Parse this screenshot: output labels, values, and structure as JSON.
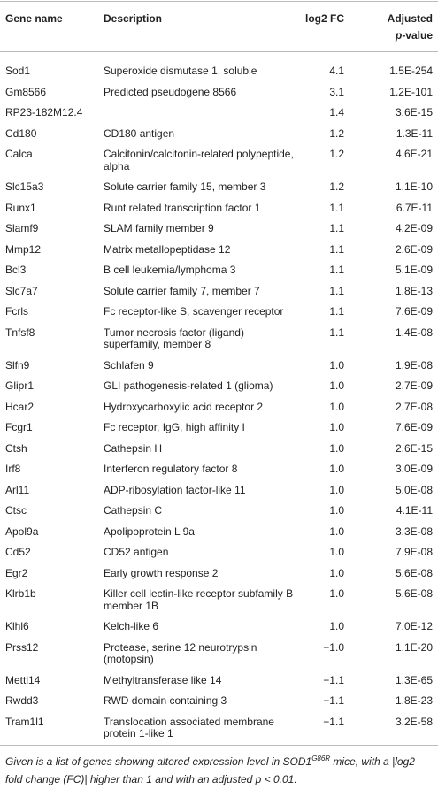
{
  "table": {
    "columns": [
      "Gene name",
      "Description",
      "log2 FC",
      [
        "Adjusted",
        "p",
        "-value"
      ]
    ],
    "rows": [
      [
        "Sod1",
        "Superoxide dismutase 1, soluble",
        "4.1",
        "1.5E-254"
      ],
      [
        "Gm8566",
        "Predicted pseudogene 8566",
        "3.1",
        "1.2E-101"
      ],
      [
        "RP23-182M12.4",
        null,
        "1.4",
        "3.6E-15"
      ],
      [
        "Cd180",
        "CD180 antigen",
        "1.2",
        "1.3E-11"
      ],
      [
        "Calca",
        "Calcitonin/calcitonin-related polypeptide, alpha",
        "1.2",
        "4.6E-21"
      ],
      [
        "Slc15a3",
        "Solute carrier family 15, member 3",
        "1.2",
        "1.1E-10"
      ],
      [
        "Runx1",
        "Runt related transcription factor 1",
        "1.1",
        "6.7E-11"
      ],
      [
        "Slamf9",
        "SLAM family member 9",
        "1.1",
        "4.2E-09"
      ],
      [
        "Mmp12",
        "Matrix metallopeptidase 12",
        "1.1",
        "2.6E-09"
      ],
      [
        "Bcl3",
        "B cell leukemia/lymphoma 3",
        "1.1",
        "5.1E-09"
      ],
      [
        "Slc7a7",
        "Solute carrier family 7, member 7",
        "1.1",
        "1.8E-13"
      ],
      [
        "Fcrls",
        "Fc receptor-like S, scavenger receptor",
        "1.1",
        "7.6E-09"
      ],
      [
        "Tnfsf8",
        "Tumor necrosis factor (ligand) superfamily, member 8",
        "1.1",
        "1.4E-08"
      ],
      [
        "Slfn9",
        "Schlafen 9",
        "1.0",
        "1.9E-08"
      ],
      [
        "Glipr1",
        "GLI pathogenesis-related 1 (glioma)",
        "1.0",
        "2.7E-09"
      ],
      [
        "Hcar2",
        "Hydroxycarboxylic acid receptor 2",
        "1.0",
        "2.7E-08"
      ],
      [
        "Fcgr1",
        "Fc receptor, IgG, high affinity I",
        "1.0",
        "7.6E-09"
      ],
      [
        "Ctsh",
        "Cathepsin H",
        "1.0",
        "2.6E-15"
      ],
      [
        "Irf8",
        "Interferon regulatory factor 8",
        "1.0",
        "3.0E-09"
      ],
      [
        "Arl11",
        "ADP-ribosylation factor-like 11",
        "1.0",
        "5.0E-08"
      ],
      [
        "Ctsc",
        "Cathepsin C",
        "1.0",
        "4.1E-11"
      ],
      [
        "Apol9a",
        "Apolipoprotein L 9a",
        "1.0",
        "3.3E-08"
      ],
      [
        "Cd52",
        "CD52 antigen",
        "1.0",
        "7.9E-08"
      ],
      [
        "Egr2",
        "Early growth response 2",
        "1.0",
        "5.6E-08"
      ],
      [
        "Klrb1b",
        "Killer cell lectin-like receptor subfamily B member 1B",
        "1.0",
        "5.6E-08"
      ],
      [
        "Klhl6",
        "Kelch-like 6",
        "1.0",
        "7.0E-12"
      ],
      [
        "Prss12",
        "Protease, serine 12 neurotrypsin (motopsin)",
        "−1.0",
        "1.1E-20"
      ],
      [
        "Mettl14",
        "Methyltransferase like 14",
        "−1.1",
        "1.3E-65"
      ],
      [
        "Rwdd3",
        "RWD domain containing 3",
        "−1.1",
        "1.8E-23"
      ],
      [
        "Tram1l1",
        "Translocation associated membrane protein 1-like 1",
        "−1.1",
        "3.2E-58"
      ]
    ],
    "caption": [
      "Given is a list of genes showing altered expression level in ",
      "SOD1",
      "G86R",
      " mice, with a |log2 fold change (FC)| higher than 1 and with an adjusted p < 0.01."
    ]
  }
}
